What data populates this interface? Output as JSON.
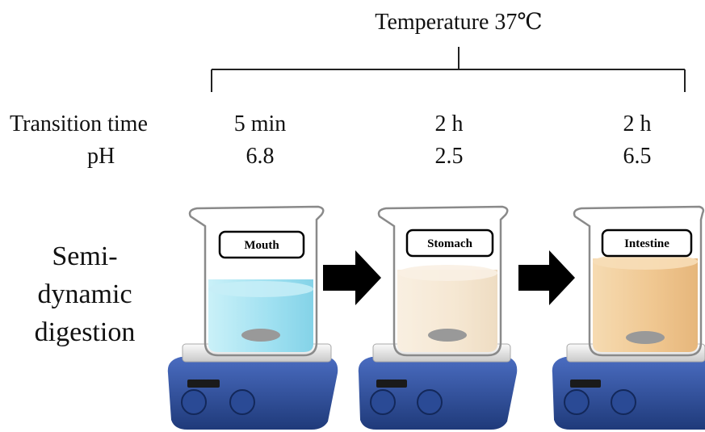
{
  "header": {
    "temperature": "Temperature 37℃"
  },
  "rows": {
    "transition_label": "Transition time",
    "ph_label": "pH"
  },
  "stages": [
    {
      "name": "Mouth",
      "time": "5 min",
      "ph": "6.8",
      "liquid_color": "#7fd6ec"
    },
    {
      "name": "Stomach",
      "time": "2 h",
      "ph": "2.5",
      "liquid_color": "#f2dfc3"
    },
    {
      "name": "Intestine",
      "time": "2 h",
      "ph": "6.5",
      "liquid_color": "#eab36a"
    }
  ],
  "side_label": {
    "line1": "Semi-",
    "line2": "dynamic",
    "line3": "digestion"
  },
  "colors": {
    "arrow": "#000000",
    "stirrer_base": "#2e4f9c",
    "stirrer_plate": "#e6e6e6"
  }
}
